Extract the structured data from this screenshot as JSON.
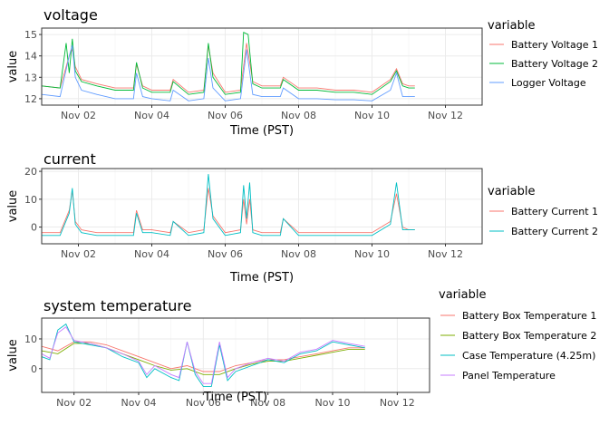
{
  "chart_data": [
    {
      "type": "line",
      "title": "voltage",
      "xlabel": "Time (PST)",
      "ylabel": "value",
      "x_unit": "date",
      "xlim": [
        "2024-11-01",
        "2024-11-13"
      ],
      "x_ticks": [
        {
          "x": "2024-11-02",
          "label": "Nov 02"
        },
        {
          "x": "2024-11-04",
          "label": "Nov 04"
        },
        {
          "x": "2024-11-06",
          "label": "Nov 06"
        },
        {
          "x": "2024-11-08",
          "label": "Nov 08"
        },
        {
          "x": "2024-11-10",
          "label": "Nov 10"
        },
        {
          "x": "2024-11-12",
          "label": "Nov 12"
        }
      ],
      "ylim": [
        11.7,
        15.3
      ],
      "y_ticks": [
        12,
        13,
        14,
        15
      ],
      "grid": true,
      "legend_title": "variable",
      "legend_position": "right",
      "series": [
        {
          "name": "Battery Voltage 1",
          "color": "#F8766D",
          "x": [
            "2024-11-01T00:00",
            "2024-11-01T12:00",
            "2024-11-01T18:00",
            "2024-11-01T20:00",
            "2024-11-01T22:00",
            "2024-11-02T02:00",
            "2024-11-02T12:00",
            "2024-11-03T00:00",
            "2024-11-03T12:00",
            "2024-11-03T14:00",
            "2024-11-03T18:00",
            "2024-11-04T00:00",
            "2024-11-04T12:00",
            "2024-11-04T14:00",
            "2024-11-05T00:00",
            "2024-11-05T10:00",
            "2024-11-05T13:00",
            "2024-11-05T16:00",
            "2024-11-06T00:00",
            "2024-11-06T10:00",
            "2024-11-06T14:00",
            "2024-11-06T18:00",
            "2024-11-07T00:00",
            "2024-11-07T12:00",
            "2024-11-07T14:00",
            "2024-11-08T00:00",
            "2024-11-08T12:00",
            "2024-11-09T00:00",
            "2024-11-09T12:00",
            "2024-11-10T00:00",
            "2024-11-10T12:00",
            "2024-11-10T16:00",
            "2024-11-10T20:00",
            "2024-11-11T00:00",
            "2024-11-11T04:00"
          ],
          "y": [
            12.6,
            12.5,
            14.0,
            14.3,
            13.5,
            12.9,
            12.7,
            12.5,
            12.5,
            13.6,
            12.6,
            12.4,
            12.4,
            12.9,
            12.3,
            12.4,
            14.5,
            13.2,
            12.3,
            12.4,
            14.6,
            12.8,
            12.6,
            12.6,
            13.0,
            12.5,
            12.5,
            12.4,
            12.4,
            12.3,
            12.9,
            13.4,
            12.7,
            12.6,
            12.6
          ]
        },
        {
          "name": "Battery Voltage 2",
          "color": "#00BA38",
          "x": [
            "2024-11-01T00:00",
            "2024-11-01T12:00",
            "2024-11-01T16:00",
            "2024-11-01T18:00",
            "2024-11-01T20:00",
            "2024-11-01T22:00",
            "2024-11-02T02:00",
            "2024-11-02T12:00",
            "2024-11-03T00:00",
            "2024-11-03T12:00",
            "2024-11-03T14:00",
            "2024-11-03T18:00",
            "2024-11-04T00:00",
            "2024-11-04T12:00",
            "2024-11-04T14:00",
            "2024-11-05T00:00",
            "2024-11-05T10:00",
            "2024-11-05T13:00",
            "2024-11-05T16:00",
            "2024-11-06T00:00",
            "2024-11-06T10:00",
            "2024-11-06T12:00",
            "2024-11-06T15:00",
            "2024-11-06T18:00",
            "2024-11-07T00:00",
            "2024-11-07T12:00",
            "2024-11-07T14:00",
            "2024-11-08T00:00",
            "2024-11-08T12:00",
            "2024-11-09T00:00",
            "2024-11-09T12:00",
            "2024-11-10T00:00",
            "2024-11-10T12:00",
            "2024-11-10T16:00",
            "2024-11-10T20:00",
            "2024-11-11T00:00",
            "2024-11-11T04:00"
          ],
          "y": [
            12.6,
            12.5,
            14.6,
            13.2,
            14.8,
            13.3,
            12.8,
            12.6,
            12.4,
            12.4,
            13.7,
            12.5,
            12.3,
            12.3,
            12.8,
            12.2,
            12.3,
            14.6,
            13.0,
            12.2,
            12.3,
            15.1,
            15.0,
            12.7,
            12.5,
            12.5,
            12.9,
            12.4,
            12.4,
            12.3,
            12.3,
            12.2,
            12.8,
            13.3,
            12.6,
            12.5,
            12.5
          ]
        },
        {
          "name": "Logger Voltage",
          "color": "#619CFF",
          "x": [
            "2024-11-01T00:00",
            "2024-11-01T12:00",
            "2024-11-01T18:00",
            "2024-11-01T20:00",
            "2024-11-01T22:00",
            "2024-11-02T02:00",
            "2024-11-02T12:00",
            "2024-11-03T00:00",
            "2024-11-03T12:00",
            "2024-11-03T14:00",
            "2024-11-03T18:00",
            "2024-11-04T00:00",
            "2024-11-04T12:00",
            "2024-11-04T14:00",
            "2024-11-05T00:00",
            "2024-11-05T10:00",
            "2024-11-05T13:00",
            "2024-11-05T16:00",
            "2024-11-06T00:00",
            "2024-11-06T10:00",
            "2024-11-06T14:00",
            "2024-11-06T18:00",
            "2024-11-07T00:00",
            "2024-11-07T12:00",
            "2024-11-07T14:00",
            "2024-11-08T00:00",
            "2024-11-08T12:00",
            "2024-11-09T00:00",
            "2024-11-09T12:00",
            "2024-11-10T00:00",
            "2024-11-10T12:00",
            "2024-11-10T16:00",
            "2024-11-10T20:00",
            "2024-11-11T00:00",
            "2024-11-11T04:00"
          ],
          "y": [
            12.2,
            12.1,
            14.0,
            14.5,
            13.0,
            12.4,
            12.2,
            12.0,
            12.0,
            13.2,
            12.1,
            12.0,
            11.9,
            12.4,
            11.9,
            12.0,
            13.9,
            12.5,
            11.9,
            12.0,
            14.3,
            12.2,
            12.1,
            12.1,
            12.5,
            12.0,
            12.0,
            11.95,
            11.95,
            11.9,
            12.4,
            13.2,
            12.1,
            12.1,
            12.1
          ]
        }
      ]
    },
    {
      "type": "line",
      "title": "current",
      "xlabel": "Time (PST)",
      "ylabel": "value",
      "x_unit": "date",
      "xlim": [
        "2024-11-01",
        "2024-11-13"
      ],
      "x_ticks": [
        {
          "x": "2024-11-02",
          "label": "Nov 02"
        },
        {
          "x": "2024-11-04",
          "label": "Nov 04"
        },
        {
          "x": "2024-11-06",
          "label": "Nov 06"
        },
        {
          "x": "2024-11-08",
          "label": "Nov 08"
        },
        {
          "x": "2024-11-10",
          "label": "Nov 10"
        },
        {
          "x": "2024-11-12",
          "label": "Nov 12"
        }
      ],
      "ylim": [
        -6,
        21
      ],
      "y_ticks": [
        0,
        10,
        20
      ],
      "grid": true,
      "legend_title": "variable",
      "legend_position": "right",
      "series": [
        {
          "name": "Battery Current 1",
          "color": "#F8766D",
          "x": [
            "2024-11-01T00:00",
            "2024-11-01T12:00",
            "2024-11-01T18:00",
            "2024-11-01T20:00",
            "2024-11-01T22:00",
            "2024-11-02T02:00",
            "2024-11-02T12:00",
            "2024-11-03T00:00",
            "2024-11-03T12:00",
            "2024-11-03T14:00",
            "2024-11-03T18:00",
            "2024-11-04T00:00",
            "2024-11-04T12:00",
            "2024-11-04T14:00",
            "2024-11-05T00:00",
            "2024-11-05T10:00",
            "2024-11-05T13:00",
            "2024-11-05T16:00",
            "2024-11-06T00:00",
            "2024-11-06T10:00",
            "2024-11-06T12:00",
            "2024-11-06T14:00",
            "2024-11-06T16:00",
            "2024-11-06T18:00",
            "2024-11-07T00:00",
            "2024-11-07T12:00",
            "2024-11-07T14:00",
            "2024-11-08T00:00",
            "2024-11-08T12:00",
            "2024-11-09T00:00",
            "2024-11-09T12:00",
            "2024-11-10T00:00",
            "2024-11-10T12:00",
            "2024-11-10T16:00",
            "2024-11-10T20:00",
            "2024-11-11T00:00",
            "2024-11-11T04:00"
          ],
          "y": [
            -2,
            -2,
            6,
            13,
            2,
            -1,
            -2,
            -2,
            -2,
            6,
            -1,
            -1,
            -2,
            2,
            -2,
            -1,
            14,
            4,
            -2,
            -1,
            10,
            1,
            10,
            -1,
            -2,
            -2,
            3,
            -2,
            -2,
            -2,
            -2,
            -2,
            2,
            12,
            0,
            -1,
            -1
          ]
        },
        {
          "name": "Battery Current 2",
          "color": "#00BFC4",
          "x": [
            "2024-11-01T00:00",
            "2024-11-01T12:00",
            "2024-11-01T18:00",
            "2024-11-01T20:00",
            "2024-11-01T22:00",
            "2024-11-02T02:00",
            "2024-11-02T12:00",
            "2024-11-03T00:00",
            "2024-11-03T12:00",
            "2024-11-03T14:00",
            "2024-11-03T18:00",
            "2024-11-04T00:00",
            "2024-11-04T12:00",
            "2024-11-04T14:00",
            "2024-11-05T00:00",
            "2024-11-05T10:00",
            "2024-11-05T13:00",
            "2024-11-05T16:00",
            "2024-11-06T00:00",
            "2024-11-06T10:00",
            "2024-11-06T12:00",
            "2024-11-06T14:00",
            "2024-11-06T16:00",
            "2024-11-06T18:00",
            "2024-11-07T00:00",
            "2024-11-07T12:00",
            "2024-11-07T14:00",
            "2024-11-08T00:00",
            "2024-11-08T12:00",
            "2024-11-09T00:00",
            "2024-11-09T12:00",
            "2024-11-10T00:00",
            "2024-11-10T12:00",
            "2024-11-10T16:00",
            "2024-11-10T20:00",
            "2024-11-11T00:00",
            "2024-11-11T04:00"
          ],
          "y": [
            -3,
            -3,
            5,
            14,
            1,
            -2,
            -3,
            -3,
            -3,
            5,
            -2,
            -2,
            -3,
            2,
            -3,
            -2,
            19,
            3,
            -3,
            -2,
            15,
            3,
            16,
            -2,
            -3,
            -3,
            3,
            -3,
            -3,
            -3,
            -3,
            -3,
            1,
            16,
            -1,
            -1,
            -1
          ]
        }
      ]
    },
    {
      "type": "line",
      "title": "system temperature",
      "xlabel": "Time (PST)",
      "ylabel": "value",
      "x_unit": "date",
      "xlim": [
        "2024-11-01",
        "2024-11-13"
      ],
      "x_ticks": [
        {
          "x": "2024-11-02",
          "label": "Nov 02"
        },
        {
          "x": "2024-11-04",
          "label": "Nov 04"
        },
        {
          "x": "2024-11-06",
          "label": "Nov 06"
        },
        {
          "x": "2024-11-08",
          "label": "Nov 08"
        },
        {
          "x": "2024-11-10",
          "label": "Nov 10"
        },
        {
          "x": "2024-11-12",
          "label": "Nov 12"
        }
      ],
      "ylim": [
        -8,
        17
      ],
      "y_ticks": [
        0,
        10
      ],
      "grid": true,
      "legend_title": "variable",
      "legend_position": "right",
      "series": [
        {
          "name": "Battery Box Temperature 1",
          "color": "#F8766D",
          "x": [
            "2024-11-01T00:00",
            "2024-11-01T12:00",
            "2024-11-02T00:00",
            "2024-11-02T12:00",
            "2024-11-03T00:00",
            "2024-11-03T12:00",
            "2024-11-04T00:00",
            "2024-11-04T12:00",
            "2024-11-05T00:00",
            "2024-11-05T12:00",
            "2024-11-06T00:00",
            "2024-11-06T12:00",
            "2024-11-07T00:00",
            "2024-11-07T12:00",
            "2024-11-08T00:00",
            "2024-11-08T12:00",
            "2024-11-09T00:00",
            "2024-11-09T12:00",
            "2024-11-10T00:00",
            "2024-11-10T12:00",
            "2024-11-11T00:00"
          ],
          "y": [
            7.5,
            6,
            9,
            9,
            8,
            6,
            4,
            2,
            0,
            1,
            -1,
            -1,
            1,
            2,
            3,
            3,
            4,
            5,
            6,
            7,
            7
          ]
        },
        {
          "name": "Battery Box Temperature 2",
          "color": "#7CAE00",
          "x": [
            "2024-11-01T00:00",
            "2024-11-01T12:00",
            "2024-11-02T00:00",
            "2024-11-02T12:00",
            "2024-11-03T00:00",
            "2024-11-03T12:00",
            "2024-11-04T00:00",
            "2024-11-04T12:00",
            "2024-11-05T00:00",
            "2024-11-05T12:00",
            "2024-11-06T00:00",
            "2024-11-06T12:00",
            "2024-11-07T00:00",
            "2024-11-07T12:00",
            "2024-11-08T00:00",
            "2024-11-08T12:00",
            "2024-11-09T00:00",
            "2024-11-09T12:00",
            "2024-11-10T00:00",
            "2024-11-10T12:00",
            "2024-11-11T00:00"
          ],
          "y": [
            6,
            5,
            8.5,
            8.5,
            7,
            5,
            3,
            1,
            -0.5,
            0,
            -2,
            -2,
            0,
            1.5,
            2.5,
            2.5,
            3.5,
            4.5,
            5.5,
            6.5,
            6.5
          ]
        },
        {
          "name": "Case Temperature (4.25m)",
          "color": "#00BFC4",
          "x": [
            "2024-11-01T00:00",
            "2024-11-01T06:00",
            "2024-11-01T12:00",
            "2024-11-01T18:00",
            "2024-11-02T00:00",
            "2024-11-02T12:00",
            "2024-11-03T00:00",
            "2024-11-03T12:00",
            "2024-11-04T00:00",
            "2024-11-04T06:00",
            "2024-11-04T12:00",
            "2024-11-05T00:00",
            "2024-11-05T06:00",
            "2024-11-05T12:00",
            "2024-11-05T18:00",
            "2024-11-06T00:00",
            "2024-11-06T06:00",
            "2024-11-06T12:00",
            "2024-11-06T18:00",
            "2024-11-07T00:00",
            "2024-11-07T12:00",
            "2024-11-08T00:00",
            "2024-11-08T12:00",
            "2024-11-09T00:00",
            "2024-11-09T12:00",
            "2024-11-10T00:00",
            "2024-11-10T12:00",
            "2024-11-11T00:00"
          ],
          "y": [
            4,
            3,
            13,
            15,
            9,
            8,
            7,
            4,
            2,
            -3,
            0,
            -3,
            -4,
            9,
            -2,
            -6,
            -6,
            8,
            -4,
            -1,
            1,
            3,
            2,
            5,
            6,
            9,
            8,
            7
          ]
        },
        {
          "name": "Panel Temperature",
          "color": "#C77CFF",
          "x": [
            "2024-11-01T00:00",
            "2024-11-01T06:00",
            "2024-11-01T12:00",
            "2024-11-01T18:00",
            "2024-11-02T00:00",
            "2024-11-02T12:00",
            "2024-11-03T00:00",
            "2024-11-03T12:00",
            "2024-11-04T00:00",
            "2024-11-04T06:00",
            "2024-11-04T12:00",
            "2024-11-05T00:00",
            "2024-11-05T06:00",
            "2024-11-05T12:00",
            "2024-11-05T18:00",
            "2024-11-06T00:00",
            "2024-11-06T06:00",
            "2024-11-06T12:00",
            "2024-11-06T18:00",
            "2024-11-07T00:00",
            "2024-11-07T12:00",
            "2024-11-08T00:00",
            "2024-11-08T12:00",
            "2024-11-09T00:00",
            "2024-11-09T12:00",
            "2024-11-10T00:00",
            "2024-11-10T12:00",
            "2024-11-11T00:00"
          ],
          "y": [
            5,
            3.5,
            12,
            14,
            9.5,
            8.5,
            7,
            5,
            2.5,
            -2,
            1,
            -2,
            -3,
            9,
            -1,
            -5,
            -5,
            9,
            -3,
            0,
            2,
            3.5,
            2.5,
            5.5,
            6.5,
            9.5,
            8.5,
            7.5
          ]
        }
      ]
    }
  ]
}
